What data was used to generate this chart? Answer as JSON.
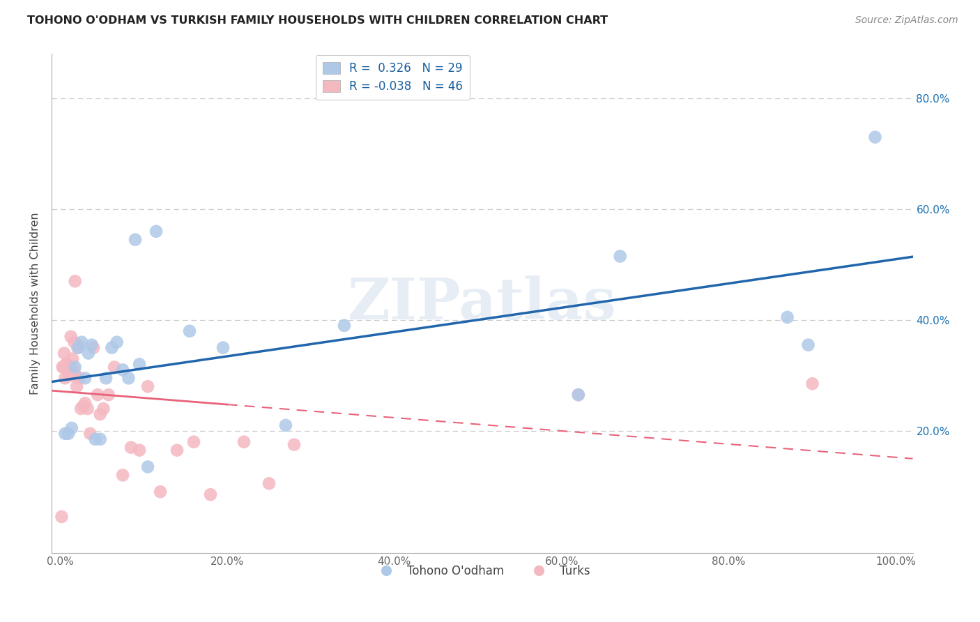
{
  "title": "TOHONO O'ODHAM VS TURKISH FAMILY HOUSEHOLDS WITH CHILDREN CORRELATION CHART",
  "source": "Source: ZipAtlas.com",
  "ylabel": "Family Households with Children",
  "xlim": [
    -0.01,
    1.02
  ],
  "ylim": [
    -0.02,
    0.88
  ],
  "xticks": [
    0.0,
    0.2,
    0.4,
    0.6,
    0.8,
    1.0
  ],
  "yticks": [
    0.2,
    0.4,
    0.6,
    0.8
  ],
  "xtick_labels": [
    "0.0%",
    "20.0%",
    "40.0%",
    "60.0%",
    "80.0%",
    "100.0%"
  ],
  "ytick_labels": [
    "20.0%",
    "40.0%",
    "60.0%",
    "80.0%"
  ],
  "legend_r_blue": "R =  0.326",
  "legend_n_blue": "N = 29",
  "legend_r_pink": "R = -0.038",
  "legend_n_pink": "N = 46",
  "legend_bottom_blue": "Tohono O'odham",
  "legend_bottom_pink": "Turks",
  "blue_scatter_color": "#aec8e8",
  "pink_scatter_color": "#f4b8c1",
  "blue_line_color": "#2166ac",
  "pink_line_color": "#e8637a",
  "pink_line_solid_color": "#e8637a",
  "watermark": "ZIPatlas",
  "blue_points_x": [
    0.006,
    0.01,
    0.014,
    0.018,
    0.022,
    0.026,
    0.03,
    0.034,
    0.038,
    0.042,
    0.048,
    0.055,
    0.062,
    0.068,
    0.075,
    0.082,
    0.09,
    0.095,
    0.105,
    0.115,
    0.155,
    0.195,
    0.27,
    0.34,
    0.62,
    0.67,
    0.87,
    0.895,
    0.975
  ],
  "blue_points_y": [
    0.195,
    0.195,
    0.205,
    0.315,
    0.35,
    0.36,
    0.295,
    0.34,
    0.355,
    0.185,
    0.185,
    0.295,
    0.35,
    0.36,
    0.31,
    0.295,
    0.545,
    0.32,
    0.135,
    0.56,
    0.38,
    0.35,
    0.21,
    0.39,
    0.265,
    0.515,
    0.405,
    0.355,
    0.73
  ],
  "pink_points_x": [
    0.002,
    0.003,
    0.004,
    0.005,
    0.006,
    0.007,
    0.008,
    0.009,
    0.01,
    0.011,
    0.012,
    0.013,
    0.014,
    0.015,
    0.016,
    0.017,
    0.018,
    0.019,
    0.02,
    0.021,
    0.022,
    0.023,
    0.025,
    0.028,
    0.03,
    0.033,
    0.036,
    0.04,
    0.045,
    0.048,
    0.052,
    0.058,
    0.065,
    0.075,
    0.085,
    0.095,
    0.105,
    0.12,
    0.14,
    0.16,
    0.18,
    0.22,
    0.25,
    0.28,
    0.62,
    0.9
  ],
  "pink_points_y": [
    0.045,
    0.315,
    0.315,
    0.34,
    0.295,
    0.32,
    0.32,
    0.32,
    0.31,
    0.3,
    0.31,
    0.37,
    0.3,
    0.33,
    0.31,
    0.36,
    0.47,
    0.3,
    0.28,
    0.35,
    0.355,
    0.295,
    0.24,
    0.245,
    0.25,
    0.24,
    0.195,
    0.35,
    0.265,
    0.23,
    0.24,
    0.265,
    0.315,
    0.12,
    0.17,
    0.165,
    0.28,
    0.09,
    0.165,
    0.18,
    0.085,
    0.18,
    0.105,
    0.175,
    0.265,
    0.285
  ]
}
